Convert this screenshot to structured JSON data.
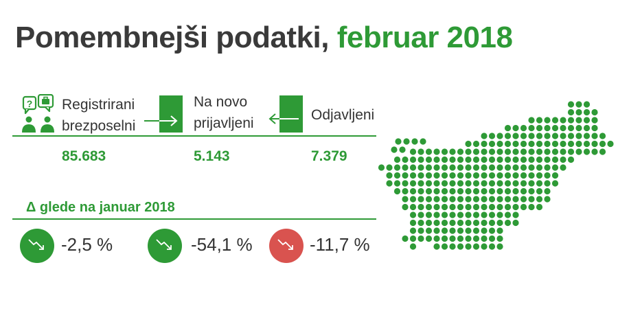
{
  "title": {
    "main": "Pomembnejši podatki, ",
    "highlight": "februar 2018"
  },
  "columns": [
    {
      "label_line1": "Registrirani",
      "label_line2": "brezposelni",
      "value": "85.683"
    },
    {
      "label_line1": "Na novo",
      "label_line2": "prijavljeni",
      "value": "5.143"
    },
    {
      "label_line1": "Odjavljeni",
      "value": "7.379"
    }
  ],
  "change": {
    "heading": "Δ glede na januar 2018",
    "items": [
      {
        "value": "-2,5 %",
        "color": "#2e9a36",
        "icon": "arrow-down-right-icon"
      },
      {
        "value": "-54,1 %",
        "color": "#2e9a36",
        "icon": "arrow-down-right-icon"
      },
      {
        "value": "-11,7 %",
        "color": "#d9534f",
        "icon": "arrow-down-right-icon"
      }
    ]
  },
  "colors": {
    "accent": "#2e9a36",
    "negative": "#d9534f",
    "text": "#333333"
  },
  "icons": [
    "people-question-icon",
    "arrow-in-icon",
    "arrow-out-icon",
    "slovenia-map-icon"
  ]
}
